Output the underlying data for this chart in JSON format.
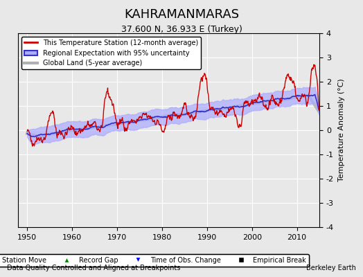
{
  "title": "KAHRAMANMARAS",
  "subtitle": "37.600 N, 36.933 E (Turkey)",
  "ylabel": "Temperature Anomaly (°C)",
  "xlabel_left": "Data Quality Controlled and Aligned at Breakpoints",
  "xlabel_right": "Berkeley Earth",
  "ylim": [
    -4,
    4
  ],
  "xlim": [
    1948,
    2015
  ],
  "yticks": [
    -4,
    -3,
    -2,
    -1,
    0,
    1,
    2,
    3,
    4
  ],
  "xticks": [
    1950,
    1960,
    1970,
    1980,
    1990,
    2000,
    2010
  ],
  "legend_station": "This Temperature Station (12-month average)",
  "legend_regional": "Regional Expectation with 95% uncertainty",
  "legend_global": "Global Land (5-year average)",
  "legend_station_move": "Station Move",
  "legend_record_gap": "Record Gap",
  "legend_obs_change": "Time of Obs. Change",
  "legend_empirical": "Empirical Break",
  "bg_color": "#e8e8e8",
  "plot_bg_color": "#e8e8e8",
  "station_color": "#cc0000",
  "regional_color": "#3333cc",
  "regional_fill_color": "#aaaaff",
  "global_color": "#b0b0b0",
  "grid_color": "#ffffff"
}
